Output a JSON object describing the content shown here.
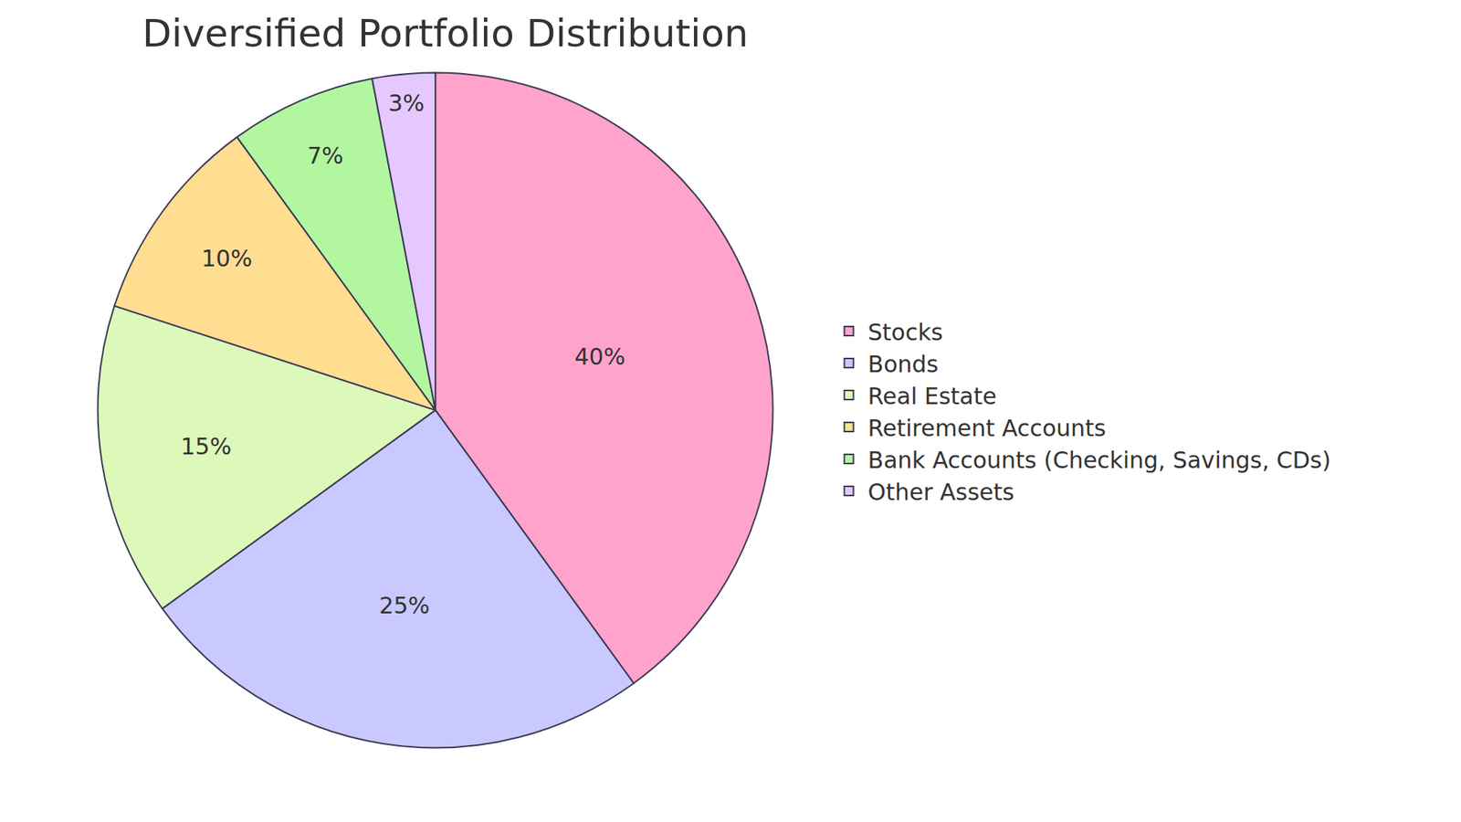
{
  "chart_data": {
    "type": "pie",
    "title": "Diversified Portfolio Distribution",
    "categories": [
      "Stocks",
      "Bonds",
      "Real Estate",
      "Retirement Accounts",
      "Bank Accounts (Checking, Savings, CDs)",
      "Other Assets"
    ],
    "values": [
      40,
      25,
      15,
      10,
      7,
      3
    ],
    "value_labels": [
      "40%",
      "25%",
      "15%",
      "10%",
      "7%",
      "3%"
    ],
    "colors": [
      "#ffa3cd",
      "#c9c9ff",
      "#dcf9b9",
      "#ffdd91",
      "#b2f7a0",
      "#e5c8ff"
    ],
    "data_labels": true,
    "legend": "right"
  }
}
